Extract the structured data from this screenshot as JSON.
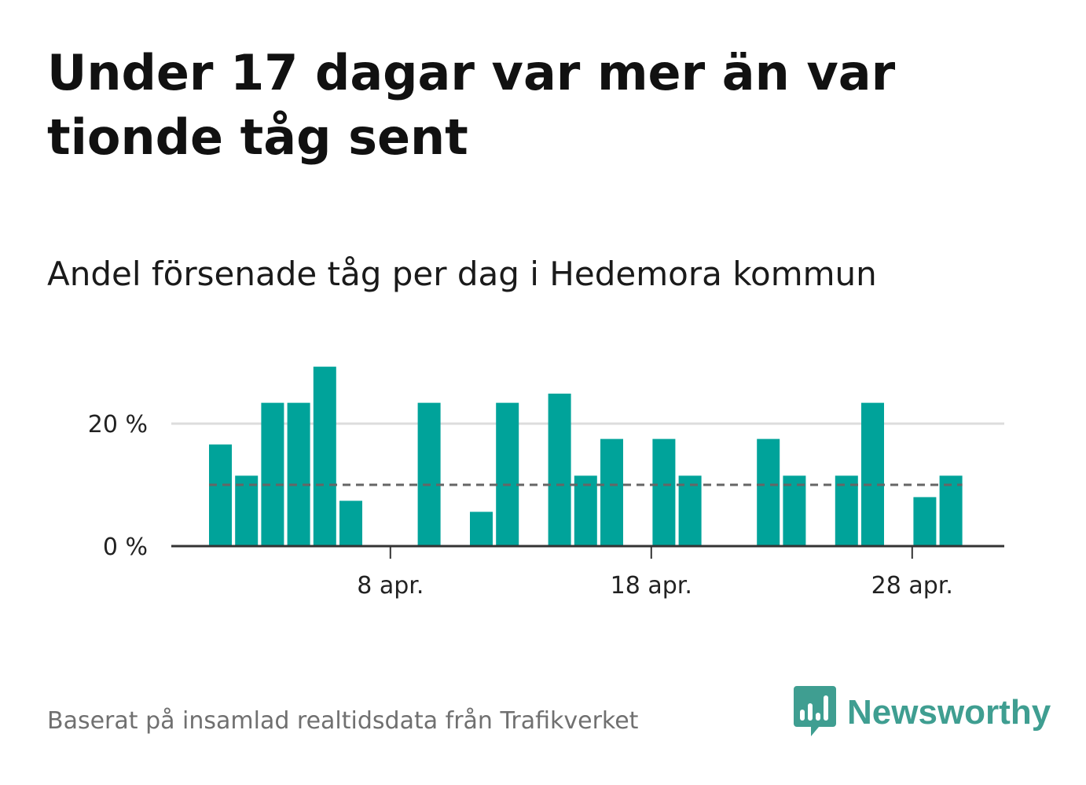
{
  "title": "Under 17 dagar var mer än var tionde tåg sent",
  "subtitle": "Andel försenade tåg per dag i Hedemora kommun",
  "source": "Baserat på insamlad realtidsdata från Trafikverket",
  "brand": {
    "name": "Newsworthy",
    "icon": "newsworthy-logo-icon",
    "color": "#3f9e91"
  },
  "colors": {
    "bar": "#00a39a",
    "grid": "#dddddd",
    "axis": "#333333",
    "reference": "#666666"
  },
  "chart_data": {
    "type": "bar",
    "title": "Andel försenade tåg per dag i Hedemora kommun",
    "xlabel": "",
    "ylabel": "",
    "x": [
      1,
      2,
      3,
      4,
      5,
      6,
      7,
      8,
      9,
      10,
      11,
      12,
      13,
      14,
      15,
      16,
      17,
      18,
      19,
      20,
      21,
      22,
      23,
      24,
      25,
      26,
      27,
      28,
      29
    ],
    "values": [
      16.6,
      11.5,
      23.4,
      23.4,
      29.3,
      7.4,
      0,
      0,
      23.4,
      0,
      5.6,
      23.4,
      0,
      24.9,
      11.5,
      17.5,
      0,
      17.5,
      11.5,
      0,
      0,
      17.5,
      11.5,
      0,
      11.5,
      23.4,
      0,
      8.0,
      11.5
    ],
    "reference_line": {
      "value": 10,
      "style": "dashed"
    },
    "ylim": [
      0,
      34
    ],
    "yticks": [
      {
        "value": 0,
        "label": "0 %"
      },
      {
        "value": 20,
        "label": "20 %"
      }
    ],
    "xticks": [
      {
        "value": 8,
        "label": "8 apr."
      },
      {
        "value": 18,
        "label": "18 apr."
      },
      {
        "value": 28,
        "label": "28 apr."
      }
    ],
    "grid": true
  }
}
